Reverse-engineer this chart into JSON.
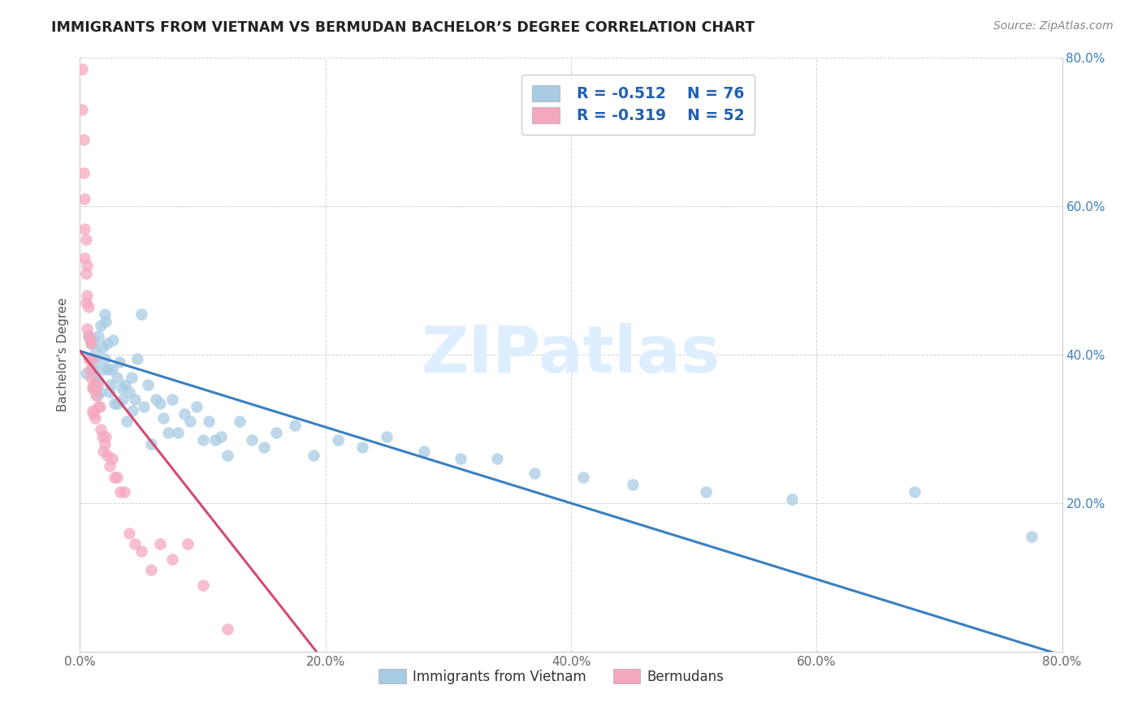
{
  "title": "IMMIGRANTS FROM VIETNAM VS BERMUDAN BACHELOR’S DEGREE CORRELATION CHART",
  "source": "Source: ZipAtlas.com",
  "ylabel": "Bachelor's Degree",
  "xlim": [
    0.0,
    0.8
  ],
  "ylim": [
    0.0,
    0.8
  ],
  "xtick_vals": [
    0.0,
    0.2,
    0.4,
    0.6,
    0.8
  ],
  "xtick_labels": [
    "0.0%",
    "20.0%",
    "40.0%",
    "60.0%",
    "80.0%"
  ],
  "ytick_vals": [
    0.2,
    0.4,
    0.6,
    0.8
  ],
  "ytick_labels": [
    "20.0%",
    "40.0%",
    "60.0%",
    "80.0%"
  ],
  "blue_color": "#a8cce4",
  "pink_color": "#f4a8be",
  "blue_line_color": "#3a7fc1",
  "pink_line_color": "#d44a72",
  "right_tick_color": "#3a7fc1",
  "legend_text_color": "#2060b0",
  "blue_R": "R = -0.512",
  "blue_N": "N = 76",
  "pink_R": "R = -0.319",
  "pink_N": "N = 52",
  "legend_label_blue": "Immigrants from Vietnam",
  "legend_label_pink": "Bermudans",
  "watermark": "ZIPatlas",
  "blue_trend_x0": 0.0,
  "blue_trend_y0": 0.405,
  "blue_trend_x1": 0.8,
  "blue_trend_y1": -0.005,
  "pink_trend_x0": 0.0,
  "pink_trend_y0": 0.405,
  "pink_trend_x1": 0.195,
  "pink_trend_y1": -0.005,
  "blue_x": [
    0.005,
    0.007,
    0.008,
    0.009,
    0.01,
    0.011,
    0.011,
    0.012,
    0.013,
    0.013,
    0.014,
    0.015,
    0.015,
    0.016,
    0.017,
    0.018,
    0.019,
    0.02,
    0.02,
    0.021,
    0.022,
    0.023,
    0.024,
    0.025,
    0.026,
    0.027,
    0.028,
    0.03,
    0.031,
    0.032,
    0.034,
    0.035,
    0.037,
    0.038,
    0.04,
    0.042,
    0.043,
    0.045,
    0.047,
    0.05,
    0.052,
    0.055,
    0.058,
    0.062,
    0.065,
    0.068,
    0.072,
    0.075,
    0.08,
    0.085,
    0.09,
    0.095,
    0.1,
    0.105,
    0.11,
    0.115,
    0.12,
    0.13,
    0.14,
    0.15,
    0.16,
    0.175,
    0.19,
    0.21,
    0.23,
    0.25,
    0.28,
    0.31,
    0.34,
    0.37,
    0.41,
    0.45,
    0.51,
    0.58,
    0.68,
    0.775
  ],
  "blue_y": [
    0.375,
    0.425,
    0.395,
    0.415,
    0.38,
    0.42,
    0.355,
    0.39,
    0.37,
    0.405,
    0.345,
    0.365,
    0.425,
    0.35,
    0.44,
    0.41,
    0.38,
    0.455,
    0.395,
    0.445,
    0.415,
    0.38,
    0.35,
    0.36,
    0.38,
    0.42,
    0.335,
    0.37,
    0.335,
    0.39,
    0.355,
    0.34,
    0.36,
    0.31,
    0.35,
    0.37,
    0.325,
    0.34,
    0.395,
    0.455,
    0.33,
    0.36,
    0.28,
    0.34,
    0.335,
    0.315,
    0.295,
    0.34,
    0.295,
    0.32,
    0.31,
    0.33,
    0.285,
    0.31,
    0.285,
    0.29,
    0.265,
    0.31,
    0.285,
    0.275,
    0.295,
    0.305,
    0.265,
    0.285,
    0.275,
    0.29,
    0.27,
    0.26,
    0.26,
    0.24,
    0.235,
    0.225,
    0.215,
    0.205,
    0.215,
    0.155
  ],
  "pink_x": [
    0.002,
    0.002,
    0.003,
    0.003,
    0.004,
    0.004,
    0.004,
    0.005,
    0.005,
    0.005,
    0.006,
    0.006,
    0.006,
    0.007,
    0.007,
    0.007,
    0.008,
    0.008,
    0.009,
    0.009,
    0.01,
    0.01,
    0.01,
    0.011,
    0.011,
    0.012,
    0.012,
    0.013,
    0.014,
    0.015,
    0.016,
    0.017,
    0.018,
    0.019,
    0.02,
    0.021,
    0.022,
    0.024,
    0.026,
    0.028,
    0.03,
    0.033,
    0.036,
    0.04,
    0.045,
    0.05,
    0.058,
    0.065,
    0.075,
    0.088,
    0.1,
    0.12
  ],
  "pink_y": [
    0.785,
    0.73,
    0.69,
    0.645,
    0.61,
    0.57,
    0.53,
    0.555,
    0.51,
    0.47,
    0.52,
    0.48,
    0.435,
    0.465,
    0.425,
    0.395,
    0.42,
    0.38,
    0.415,
    0.37,
    0.395,
    0.355,
    0.325,
    0.36,
    0.32,
    0.355,
    0.315,
    0.345,
    0.36,
    0.33,
    0.33,
    0.3,
    0.29,
    0.27,
    0.28,
    0.29,
    0.265,
    0.25,
    0.26,
    0.235,
    0.235,
    0.215,
    0.215,
    0.16,
    0.145,
    0.135,
    0.11,
    0.145,
    0.125,
    0.145,
    0.09,
    0.03
  ]
}
